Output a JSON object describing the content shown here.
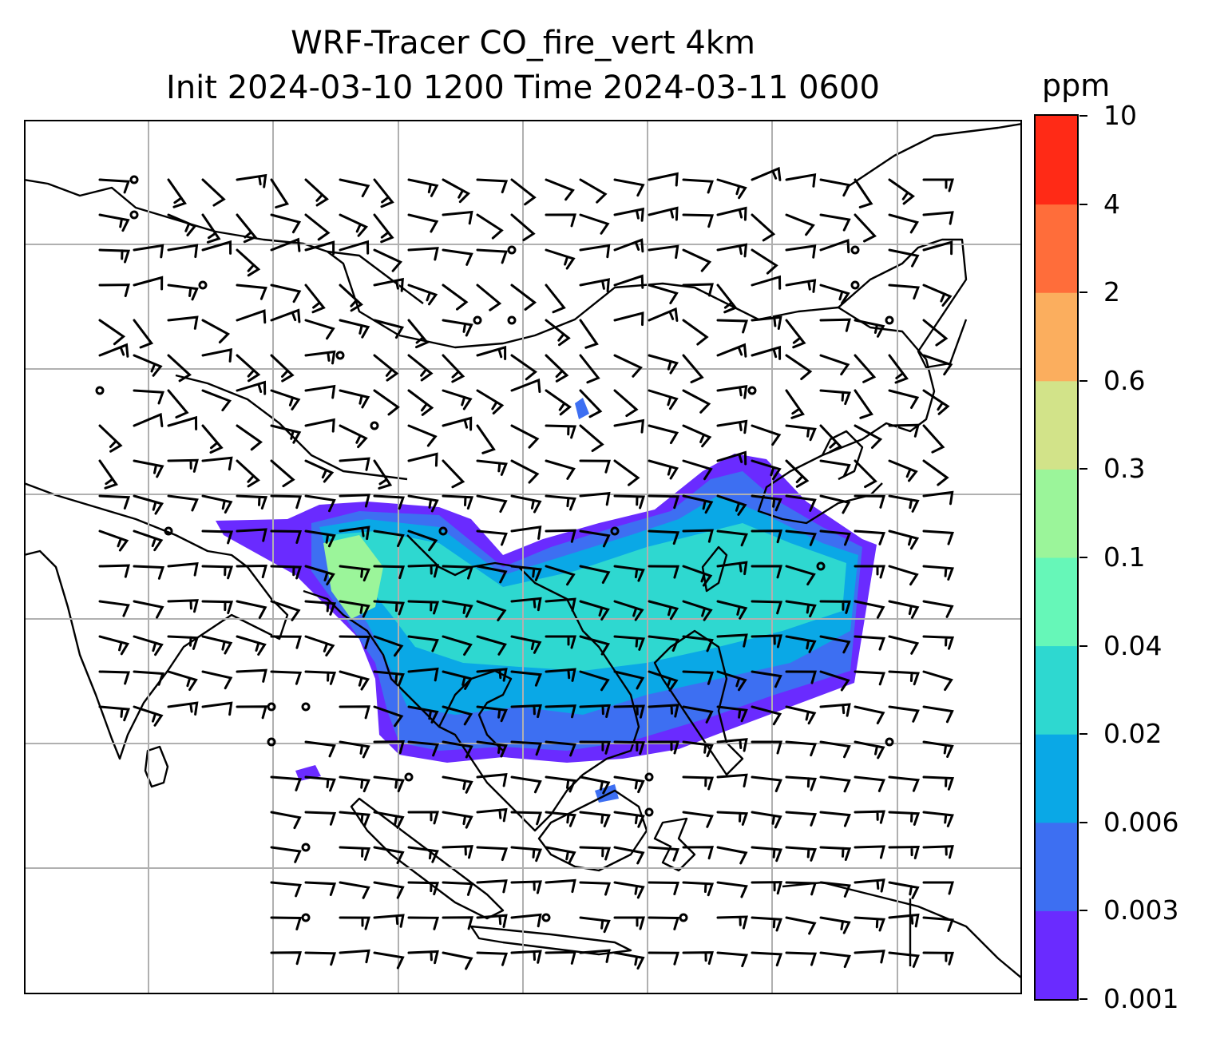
{
  "title": {
    "line1": "WRF-Tracer CO_fire_vert 4km",
    "line2": "Init 2024-03-10 1200 Time 2024-03-11 0600"
  },
  "colorbar": {
    "unit": "ppm",
    "tick_labels": [
      "0.001",
      "0.003",
      "0.006",
      "0.02",
      "0.04",
      "0.1",
      "0.3",
      "0.6",
      "2",
      "4",
      "10"
    ],
    "colors": [
      "#6a2bff",
      "#3d6ff2",
      "#0aa8e6",
      "#2ed8d0",
      "#66f7b8",
      "#9bf59a",
      "#d2e389",
      "#fbae5e",
      "#ff6d3a",
      "#ff2a16"
    ]
  },
  "map": {
    "gridlines": true,
    "line_color": "#000000",
    "grid_color": "#b0b0b0"
  }
}
